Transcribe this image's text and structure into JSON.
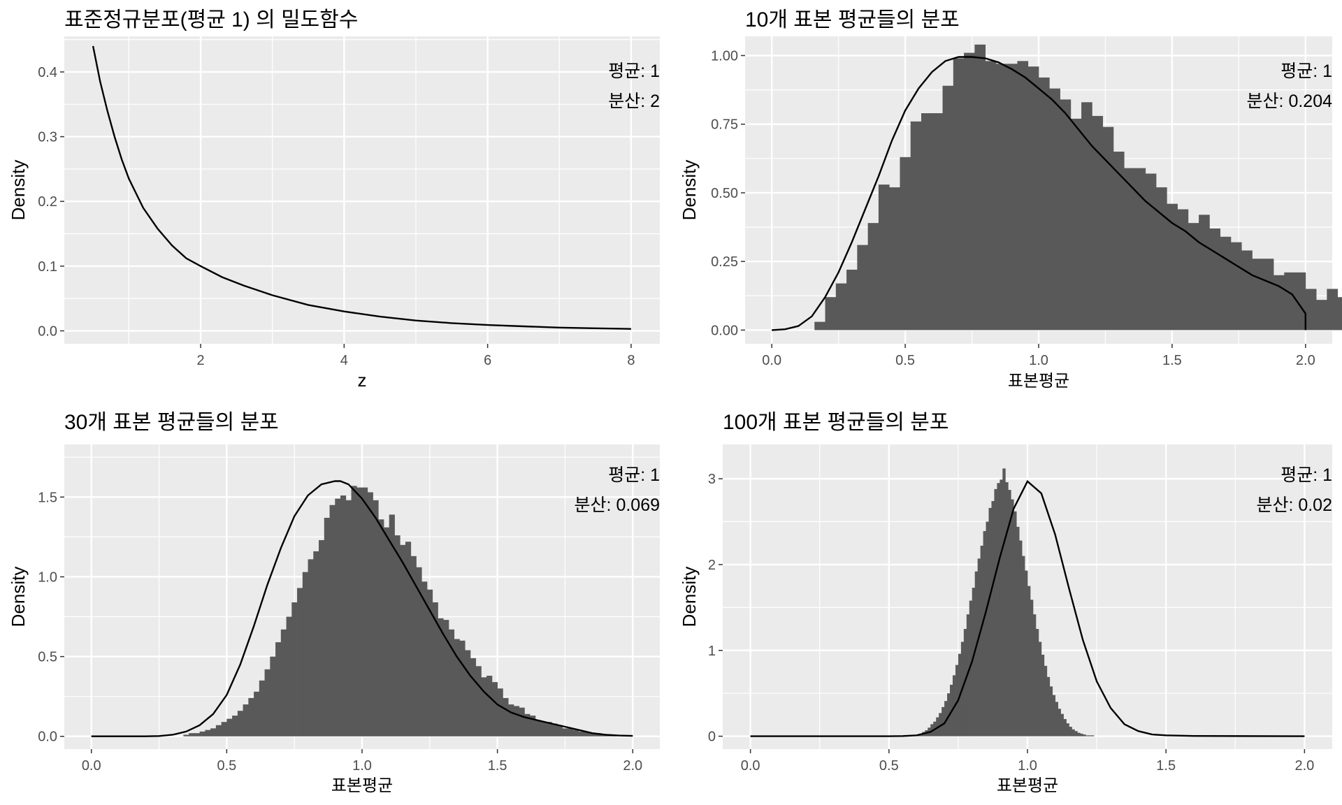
{
  "colors": {
    "panel_bg": "#ebebeb",
    "grid": "#ffffff",
    "bar": "#595959",
    "curve": "#000000",
    "text": "#000000",
    "tick_text": "#4d4d4d",
    "tick_mark": "#333333"
  },
  "chart_data": [
    {
      "type": "line",
      "title": "표준정규분포(평균 1) 의 밀도함수",
      "xlabel": "z",
      "ylabel": "Density",
      "xlim": [
        0.1,
        8.4
      ],
      "ylim": [
        -0.02,
        0.455
      ],
      "xticks": [
        2,
        4,
        6,
        8
      ],
      "yticks": [
        0.0,
        0.1,
        0.2,
        0.3,
        0.4
      ],
      "xtick_labels": [
        "2",
        "4",
        "6",
        "8"
      ],
      "ytick_labels": [
        "0.0",
        "0.1",
        "0.2",
        "0.3",
        "0.4"
      ],
      "grid": true,
      "annotations": [
        "평균: 1",
        "분산: 2"
      ],
      "curve": {
        "x": [
          0.5,
          0.6,
          0.7,
          0.8,
          0.9,
          1.0,
          1.2,
          1.4,
          1.6,
          1.8,
          2.0,
          2.3,
          2.6,
          3.0,
          3.5,
          4.0,
          4.5,
          5.0,
          5.5,
          6.0,
          6.5,
          7.0,
          7.5,
          8.0
        ],
        "y": [
          0.44,
          0.385,
          0.34,
          0.3,
          0.265,
          0.235,
          0.19,
          0.158,
          0.132,
          0.112,
          0.1,
          0.083,
          0.07,
          0.055,
          0.04,
          0.03,
          0.022,
          0.016,
          0.012,
          0.009,
          0.007,
          0.005,
          0.004,
          0.003
        ]
      }
    },
    {
      "type": "bar",
      "title": "10개 표본 평균들의 분포",
      "xlabel": "표본평균",
      "ylabel": "Density",
      "xlim": [
        -0.1,
        2.1
      ],
      "ylim": [
        -0.05,
        1.07
      ],
      "xticks": [
        0.0,
        0.5,
        1.0,
        1.5,
        2.0
      ],
      "yticks": [
        0.0,
        0.25,
        0.5,
        0.75,
        1.0
      ],
      "xtick_labels": [
        "0.0",
        "0.5",
        "1.0",
        "1.5",
        "2.0"
      ],
      "ytick_labels": [
        "0.00",
        "0.25",
        "0.50",
        "0.75",
        "1.00"
      ],
      "grid": true,
      "annotations": [
        "평균: 1",
        "분산: 0.204"
      ],
      "bins": {
        "start": 0.0,
        "width": 0.04
      },
      "values": [
        0,
        0,
        0,
        0,
        0.03,
        0.12,
        0.17,
        0.22,
        0.31,
        0.39,
        0.53,
        0.52,
        0.63,
        0.76,
        0.79,
        0.79,
        0.89,
        0.99,
        1.01,
        1.04,
        0.98,
        0.97,
        0.97,
        0.98,
        0.96,
        0.92,
        0.88,
        0.84,
        0.77,
        0.83,
        0.78,
        0.74,
        0.65,
        0.59,
        0.59,
        0.57,
        0.52,
        0.46,
        0.44,
        0.39,
        0.42,
        0.37,
        0.34,
        0.32,
        0.29,
        0.26,
        0.26,
        0.2,
        0.21,
        0.21,
        0.15,
        0.11,
        0.15,
        0.12
      ],
      "curve": {
        "x": [
          0.0,
          0.05,
          0.1,
          0.15,
          0.2,
          0.25,
          0.3,
          0.35,
          0.4,
          0.45,
          0.5,
          0.55,
          0.6,
          0.65,
          0.7,
          0.75,
          0.8,
          0.85,
          0.9,
          0.95,
          1.0,
          1.05,
          1.1,
          1.15,
          1.2,
          1.25,
          1.3,
          1.35,
          1.4,
          1.45,
          1.5,
          1.55,
          1.6,
          1.65,
          1.7,
          1.75,
          1.8,
          1.85,
          1.9,
          1.95,
          2.0,
          2.0
        ],
        "y": [
          0.0,
          0.003,
          0.015,
          0.05,
          0.12,
          0.21,
          0.32,
          0.44,
          0.56,
          0.69,
          0.8,
          0.88,
          0.94,
          0.98,
          0.995,
          0.995,
          0.99,
          0.975,
          0.95,
          0.92,
          0.88,
          0.84,
          0.79,
          0.73,
          0.67,
          0.62,
          0.57,
          0.52,
          0.47,
          0.43,
          0.39,
          0.36,
          0.32,
          0.29,
          0.26,
          0.23,
          0.2,
          0.18,
          0.16,
          0.13,
          0.06,
          0.0
        ]
      }
    },
    {
      "type": "bar",
      "title": "30개 표본 평균들의 분포",
      "xlabel": "표본평균",
      "ylabel": "Density",
      "xlim": [
        -0.1,
        2.1
      ],
      "ylim": [
        -0.08,
        1.83
      ],
      "xticks": [
        0.0,
        0.5,
        1.0,
        1.5,
        2.0
      ],
      "yticks": [
        0.0,
        0.5,
        1.0,
        1.5
      ],
      "xtick_labels": [
        "0.0",
        "0.5",
        "1.0",
        "1.5",
        "2.0"
      ],
      "ytick_labels": [
        "0.0",
        "0.5",
        "1.0",
        "1.5"
      ],
      "grid": true,
      "annotations": [
        "평균: 1",
        "분산: 0.069"
      ],
      "bins": {
        "start": 0.0,
        "width": 0.02
      },
      "values": [
        0,
        0,
        0,
        0,
        0,
        0,
        0,
        0,
        0,
        0,
        0,
        0,
        0,
        0,
        0,
        0,
        0,
        0.01,
        0.02,
        0.02,
        0.03,
        0.04,
        0.05,
        0.07,
        0.09,
        0.11,
        0.13,
        0.16,
        0.2,
        0.24,
        0.28,
        0.35,
        0.42,
        0.5,
        0.59,
        0.67,
        0.75,
        0.84,
        0.93,
        1.03,
        1.11,
        1.16,
        1.23,
        1.37,
        1.45,
        1.49,
        1.51,
        1.48,
        1.57,
        1.56,
        1.56,
        1.53,
        1.48,
        1.36,
        1.31,
        1.39,
        1.26,
        1.2,
        1.22,
        1.13,
        1.06,
        0.97,
        0.92,
        0.84,
        0.74,
        0.73,
        0.67,
        0.61,
        0.6,
        0.54,
        0.49,
        0.44,
        0.37,
        0.38,
        0.34,
        0.3,
        0.24,
        0.2,
        0.19,
        0.18,
        0.14,
        0.13,
        0.1,
        0.09,
        0.09,
        0.08,
        0.07,
        0.05,
        0.05,
        0.04,
        0.03,
        0.03,
        0.02,
        0.02,
        0.01,
        0.01,
        0.01,
        0.0,
        0.0,
        0.0
      ],
      "curve": {
        "x": [
          0.0,
          0.1,
          0.2,
          0.25,
          0.3,
          0.35,
          0.4,
          0.45,
          0.5,
          0.55,
          0.6,
          0.65,
          0.7,
          0.75,
          0.8,
          0.85,
          0.9,
          0.92,
          0.95,
          1.0,
          1.05,
          1.1,
          1.15,
          1.2,
          1.25,
          1.3,
          1.35,
          1.4,
          1.45,
          1.5,
          1.55,
          1.6,
          1.65,
          1.7,
          1.75,
          1.8,
          1.85,
          1.9,
          1.95,
          2.0
        ],
        "y": [
          0.0,
          0.0,
          0.0,
          0.002,
          0.01,
          0.03,
          0.07,
          0.14,
          0.26,
          0.45,
          0.69,
          0.95,
          1.18,
          1.38,
          1.51,
          1.58,
          1.6,
          1.6,
          1.58,
          1.49,
          1.37,
          1.23,
          1.09,
          0.94,
          0.79,
          0.64,
          0.5,
          0.38,
          0.28,
          0.2,
          0.15,
          0.12,
          0.1,
          0.08,
          0.06,
          0.04,
          0.02,
          0.01,
          0.005,
          0.003
        ]
      }
    },
    {
      "type": "bar",
      "title": "100개 표본 평균들의 분포",
      "xlabel": "표본평균",
      "ylabel": "Density",
      "xlim": [
        -0.1,
        2.1
      ],
      "ylim": [
        -0.15,
        3.4
      ],
      "xticks": [
        0.0,
        0.5,
        1.0,
        1.5,
        2.0
      ],
      "yticks": [
        0,
        1,
        2,
        3
      ],
      "xtick_labels": [
        "0.0",
        "0.5",
        "1.0",
        "1.5",
        "2.0"
      ],
      "ytick_labels": [
        "0",
        "1",
        "2",
        "3"
      ],
      "grid": true,
      "annotations": [
        "평균: 1",
        "분산: 0.02"
      ],
      "bins": {
        "start": 0.6,
        "width": 0.01
      },
      "values": [
        0.02,
        0.03,
        0.05,
        0.07,
        0.1,
        0.14,
        0.17,
        0.22,
        0.27,
        0.34,
        0.41,
        0.5,
        0.6,
        0.71,
        0.83,
        0.96,
        1.1,
        1.25,
        1.42,
        1.58,
        1.73,
        1.92,
        2.07,
        2.22,
        2.39,
        2.5,
        2.66,
        2.74,
        2.88,
        2.95,
        2.99,
        3.12,
        2.96,
        2.87,
        2.76,
        2.62,
        2.44,
        2.28,
        2.1,
        1.93,
        1.75,
        1.59,
        1.42,
        1.25,
        1.1,
        0.95,
        0.82,
        0.69,
        0.58,
        0.48,
        0.4,
        0.32,
        0.26,
        0.2,
        0.15,
        0.11,
        0.08,
        0.06,
        0.04,
        0.03,
        0.02,
        0.01,
        0.01,
        0.01,
        0.0
      ],
      "curve": {
        "x": [
          0.0,
          0.4,
          0.5,
          0.55,
          0.6,
          0.65,
          0.7,
          0.75,
          0.8,
          0.85,
          0.9,
          0.95,
          1.0,
          1.05,
          1.1,
          1.15,
          1.2,
          1.25,
          1.3,
          1.35,
          1.4,
          1.45,
          1.5,
          1.6,
          2.0
        ],
        "y": [
          0.0,
          0.0,
          0.0,
          0.002,
          0.01,
          0.05,
          0.15,
          0.42,
          0.87,
          1.45,
          2.08,
          2.65,
          2.97,
          2.83,
          2.35,
          1.72,
          1.12,
          0.64,
          0.33,
          0.14,
          0.06,
          0.02,
          0.01,
          0.003,
          0.0
        ]
      }
    }
  ]
}
